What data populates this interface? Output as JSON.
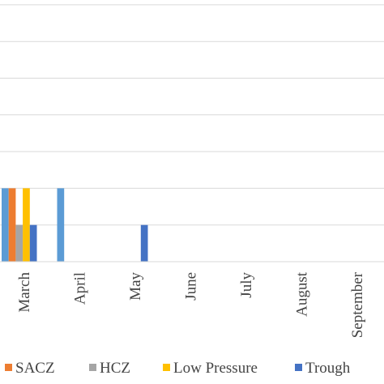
{
  "chart_data": {
    "type": "bar",
    "categories": [
      "March",
      "April",
      "May",
      "June",
      "July",
      "August",
      "September"
    ],
    "series": [
      {
        "name": "SACZ",
        "color": "#ED7D31",
        "values": [
          2,
          0,
          0,
          0,
          0,
          0,
          0
        ]
      },
      {
        "name": "HCZ",
        "color": "#A5A5A5",
        "values": [
          1,
          0,
          0,
          0,
          0,
          0,
          0
        ]
      },
      {
        "name": "Low Pressure",
        "color": "#FFC000",
        "values": [
          2,
          0,
          0,
          0,
          0,
          0,
          0
        ]
      },
      {
        "name": "Trough",
        "color": "#4472C4",
        "values": [
          1,
          0,
          1,
          0,
          0,
          0,
          0
        ]
      }
    ],
    "extra_series": [
      {
        "color": "#5B9BD5",
        "values": [
          2,
          2,
          0,
          0,
          0,
          0,
          0
        ]
      }
    ],
    "ylim": [
      0,
      7
    ],
    "grid": true,
    "legend_position": "bottom"
  }
}
